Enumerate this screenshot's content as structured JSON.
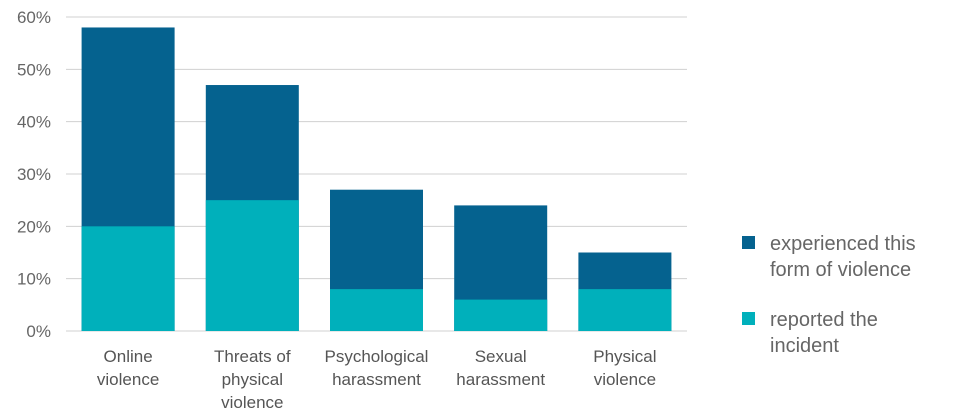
{
  "chart_data": {
    "type": "bar",
    "stacked": "overlay",
    "categories": [
      [
        "Online",
        "violence"
      ],
      [
        "Threats of",
        "physical",
        "violence"
      ],
      [
        "Psychological",
        "harassment"
      ],
      [
        "Sexual",
        "harassment"
      ],
      [
        "Physical",
        "violence"
      ]
    ],
    "series": [
      {
        "name": [
          "experienced this",
          "form of violence"
        ],
        "values": [
          58,
          47,
          27,
          24,
          15
        ],
        "color": "#05628f"
      },
      {
        "name": [
          "reported the",
          "incident"
        ],
        "values": [
          20,
          25,
          8,
          6,
          8
        ],
        "color": "#00b0bb"
      }
    ],
    "ylim": [
      0,
      60
    ],
    "yticks": [
      "0%",
      "10%",
      "20%",
      "30%",
      "40%",
      "50%",
      "60%"
    ],
    "grid": true,
    "legend_position": "right"
  }
}
